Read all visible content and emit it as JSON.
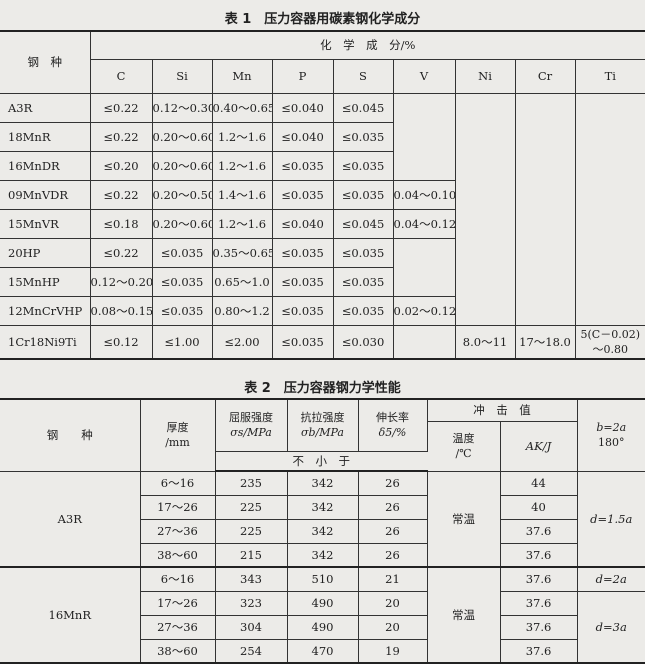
{
  "table1": {
    "title": "表 1　压力容器用碳素钢化学成分",
    "header_grade": "钢　种",
    "header_group": "化　学　成　分/%",
    "columns": [
      "C",
      "Si",
      "Mn",
      "P",
      "S",
      "V",
      "Ni",
      "Cr",
      "Ti"
    ],
    "rows": [
      {
        "grade": "A3R",
        "values": [
          "≤0.22",
          "0.12～0.30",
          "0.40～0.65",
          "≤0.040",
          "≤0.045",
          "",
          "",
          "",
          ""
        ]
      },
      {
        "grade": "18MnR",
        "values": [
          "≤0.22",
          "0.20～0.60",
          "1.2～1.6",
          "≤0.040",
          "≤0.035",
          "",
          "",
          "",
          ""
        ]
      },
      {
        "grade": "16MnDR",
        "values": [
          "≤0.20",
          "0.20～0.60",
          "1.2～1.6",
          "≤0.035",
          "≤0.035",
          "",
          "",
          "",
          ""
        ]
      },
      {
        "grade": "09MnVDR",
        "values": [
          "≤0.22",
          "0.20～0.50",
          "1.4～1.6",
          "≤0.035",
          "≤0.035",
          "0.04～0.10",
          "",
          "",
          ""
        ]
      },
      {
        "grade": "15MnVR",
        "values": [
          "≤0.18",
          "0.20～0.60",
          "1.2～1.6",
          "≤0.040",
          "≤0.045",
          "0.04～0.12",
          "",
          "",
          ""
        ]
      },
      {
        "grade": "20HP",
        "values": [
          "≤0.22",
          "≤0.035",
          "0.35～0.65",
          "≤0.035",
          "≤0.035",
          "",
          "",
          "",
          ""
        ]
      },
      {
        "grade": "15MnHP",
        "values": [
          "0.12～0.20",
          "≤0.035",
          "0.65～1.0",
          "≤0.035",
          "≤0.035",
          "",
          "",
          "",
          ""
        ]
      },
      {
        "grade": "12MnCrVHP",
        "values": [
          "0.08～0.15",
          "≤0.035",
          "0.80～1.2",
          "≤0.035",
          "≤0.035",
          "0.02～0.12",
          "",
          "",
          ""
        ]
      },
      {
        "grade": "1Cr18Ni9Ti",
        "values": [
          "≤0.12",
          "≤1.00",
          "≤2.00",
          "≤0.035",
          "≤0.030",
          "",
          "8.0～11",
          "17～18.0",
          "5(C－0.02)"
        ],
        "ti_line2": "～0.80"
      }
    ]
  },
  "table2": {
    "title": "表 2　压力容器钢力学性能",
    "h_grade": "钢　　种",
    "h_thick": [
      "厚度",
      "/mm"
    ],
    "h_yield": [
      "屈服强度",
      "σs/MPa"
    ],
    "h_tensile": [
      "抗拉强度",
      "σb/MPa"
    ],
    "h_elong": [
      "伸长率",
      "δ5/%"
    ],
    "h_min": "不　小　于",
    "h_impact": "冲　击　值",
    "h_temp": [
      "温度",
      "/℃"
    ],
    "h_ak": "AK/J",
    "h_bend": [
      "b=2a",
      "180°"
    ],
    "groups": [
      {
        "grade": "A3R",
        "temp": "常温",
        "bend": [
          "d=1.5a"
        ],
        "rows": [
          [
            "6～16",
            "235",
            "342",
            "26",
            "44"
          ],
          [
            "17～26",
            "225",
            "342",
            "26",
            "40"
          ],
          [
            "27～36",
            "225",
            "342",
            "26",
            "37.6"
          ],
          [
            "38～60",
            "215",
            "342",
            "26",
            "37.6"
          ]
        ]
      },
      {
        "grade": "16MnR",
        "temp": "常温",
        "bend": [
          "d=2a",
          "d=3a"
        ],
        "rows": [
          [
            "6～16",
            "343",
            "510",
            "21",
            "37.6"
          ],
          [
            "17～26",
            "323",
            "490",
            "20",
            "37.6"
          ],
          [
            "27～36",
            "304",
            "490",
            "20",
            "37.6"
          ],
          [
            "38～60",
            "254",
            "470",
            "19",
            "37.6"
          ]
        ]
      }
    ]
  }
}
